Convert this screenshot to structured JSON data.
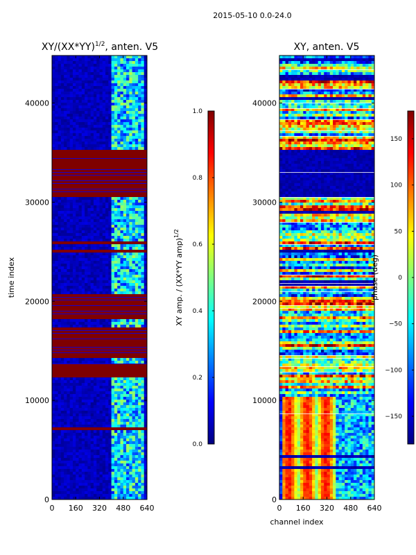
{
  "suptitle": "2015-05-10 0.0-24.0",
  "colors": {
    "jet": [
      "#00007f",
      "#0000ff",
      "#007fff",
      "#00ffff",
      "#7fff7f",
      "#ffff00",
      "#ff7f00",
      "#ff0000",
      "#7f0000"
    ]
  },
  "chart_data": [
    {
      "type": "heatmap",
      "title_main": "XY/(XX*YY)",
      "title_exp": "1/2",
      "title_tail": ", anten. V5",
      "xlabel": "",
      "ylabel": "time index",
      "xlim": [
        0,
        640
      ],
      "ylim": [
        0,
        44800
      ],
      "xticks": [
        "0",
        "160",
        "320",
        "480",
        "640"
      ],
      "xtick_values": [
        0,
        160,
        320,
        480,
        640
      ],
      "yticks": [
        "0",
        "10000",
        "20000",
        "30000",
        "40000"
      ],
      "ytick_values": [
        0,
        10000,
        20000,
        30000,
        40000
      ],
      "saturated_bands": [
        [
          30400,
          35200
        ],
        [
          14200,
          17400
        ],
        [
          18800,
          20600
        ],
        [
          12300,
          13600
        ]
      ],
      "bright_channel_range": [
        400,
        620
      ],
      "colorbar": {
        "label_main": "XY amp. / (XX*YY amp)",
        "label_exp": "1/2",
        "range": [
          0.0,
          1.0
        ],
        "ticks": [
          "0.0",
          "0.2",
          "0.4",
          "0.6",
          "0.8",
          "1.0"
        ],
        "tick_values": [
          0.0,
          0.2,
          0.4,
          0.6,
          0.8,
          1.0
        ]
      }
    },
    {
      "type": "heatmap",
      "title": "XY, anten. V5",
      "xlabel": "channel index",
      "ylabel": "",
      "xlim": [
        0,
        640
      ],
      "ylim": [
        0,
        44800
      ],
      "xticks": [
        "0",
        "160",
        "320",
        "480",
        "640"
      ],
      "xtick_values": [
        0,
        160,
        320,
        480,
        640
      ],
      "yticks": [
        "0",
        "10000",
        "20000",
        "30000",
        "40000"
      ],
      "ytick_values": [
        0,
        10000,
        20000,
        30000,
        40000
      ],
      "colorbar": {
        "label": "phase (deg)",
        "range": [
          -180,
          180
        ],
        "ticks": [
          "−150",
          "−100",
          "−50",
          "0",
          "50",
          "100",
          "150"
        ],
        "tick_values": [
          -150,
          -100,
          -50,
          0,
          50,
          100,
          150
        ]
      }
    }
  ]
}
